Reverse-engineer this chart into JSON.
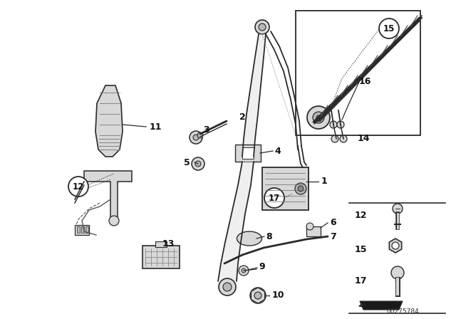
{
  "bg_color": "#ffffff",
  "diagram_id": "00275784",
  "line_color": "#2a2a2a",
  "label_color": "#111111",
  "fill_light": "#d8d8d8",
  "fill_mid": "#b8b8b8",
  "fill_dark": "#888888"
}
